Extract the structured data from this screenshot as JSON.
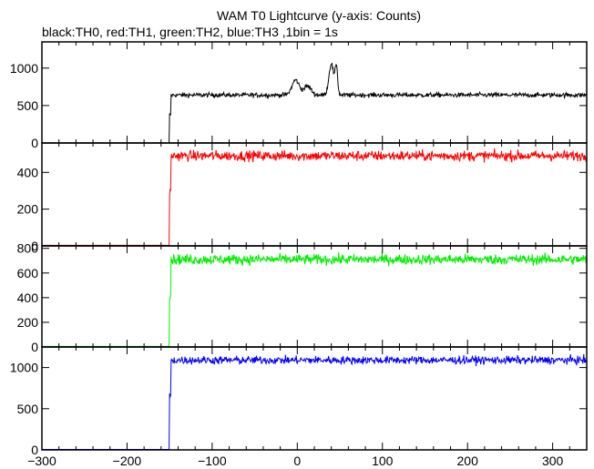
{
  "title": "WAM T0 Lightcurve (y-axis: Counts)",
  "subtitle": "black:TH0, red:TH1, green:TH2, blue:TH3 ,1bin = 1s",
  "chart_data": {
    "type": "line",
    "x_ticks": [
      -300,
      -200,
      -100,
      0,
      100,
      200,
      300
    ],
    "xlim": [
      -300,
      340
    ],
    "step_time": -150,
    "panels": [
      {
        "name": "TH0",
        "color": "#000000",
        "ylim": [
          0,
          1350
        ],
        "y_ticks": [
          0,
          500,
          1000
        ],
        "pre_level": 0,
        "post_level": 640,
        "noise": 22,
        "bumps": [
          {
            "center": -2,
            "width": 6,
            "height": 200
          },
          {
            "center": 12,
            "width": 6,
            "height": 120
          },
          {
            "center": 40,
            "width": 4,
            "height": 420
          },
          {
            "center": 46,
            "width": 2,
            "height": 380
          }
        ]
      },
      {
        "name": "TH1",
        "color": "#ff0000",
        "ylim": [
          0,
          560
        ],
        "y_ticks": [
          0,
          200,
          400
        ],
        "pre_level": 3,
        "post_level": 490,
        "noise": 20,
        "bumps": []
      },
      {
        "name": "TH2",
        "color": "#00ee00",
        "ylim": [
          0,
          820
        ],
        "y_ticks": [
          0,
          200,
          400,
          600,
          800
        ],
        "pre_level": 5,
        "post_level": 710,
        "noise": 30,
        "bumps": []
      },
      {
        "name": "TH3",
        "color": "#0000ff",
        "ylim": [
          0,
          1250
        ],
        "y_ticks": [
          0,
          500,
          1000
        ],
        "pre_level": 5,
        "post_level": 1090,
        "noise": 35,
        "bumps": []
      }
    ]
  }
}
